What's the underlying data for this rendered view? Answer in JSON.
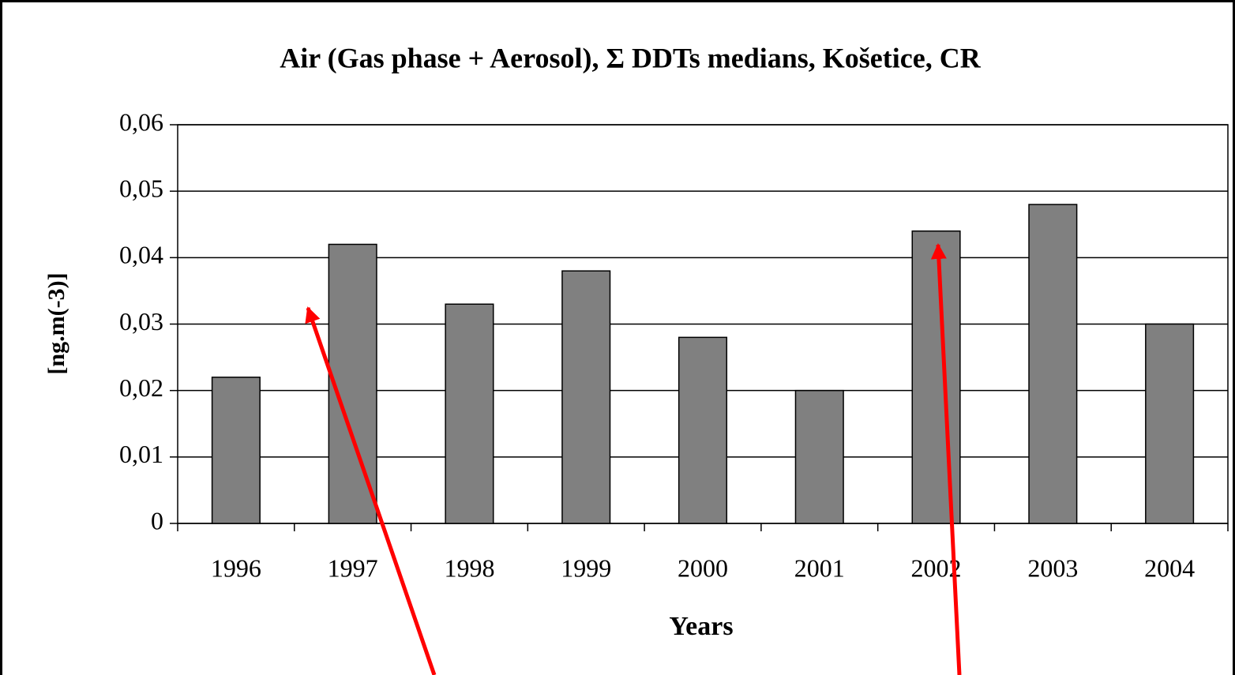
{
  "chart_data": {
    "type": "bar",
    "title": "Air (Gas phase + Aerosol), Σ DDTs medians, Košetice, CR",
    "x_label": "Years",
    "y_label": "[ng.m(-3)]",
    "categories": [
      "1996",
      "1997",
      "1998",
      "1999",
      "2000",
      "2001",
      "2002",
      "2003",
      "2004"
    ],
    "values": [
      0.022,
      0.042,
      0.033,
      0.038,
      0.028,
      0.02,
      0.044,
      0.048,
      0.03
    ],
    "color": "#808080",
    "ylim": [
      0,
      0.06
    ],
    "yticks": [
      0,
      {
        "value": 0.01,
        "label": "0,01"
      },
      {
        "value": 0.02,
        "label": "0,02"
      },
      {
        "value": 0.03,
        "label": "0,03"
      },
      {
        "value": 0.04,
        "label": "0,04"
      },
      {
        "value": 0.05,
        "label": "0,05"
      },
      {
        "value": 0.06,
        "label": "0,06"
      }
    ],
    "grid": true
  }
}
